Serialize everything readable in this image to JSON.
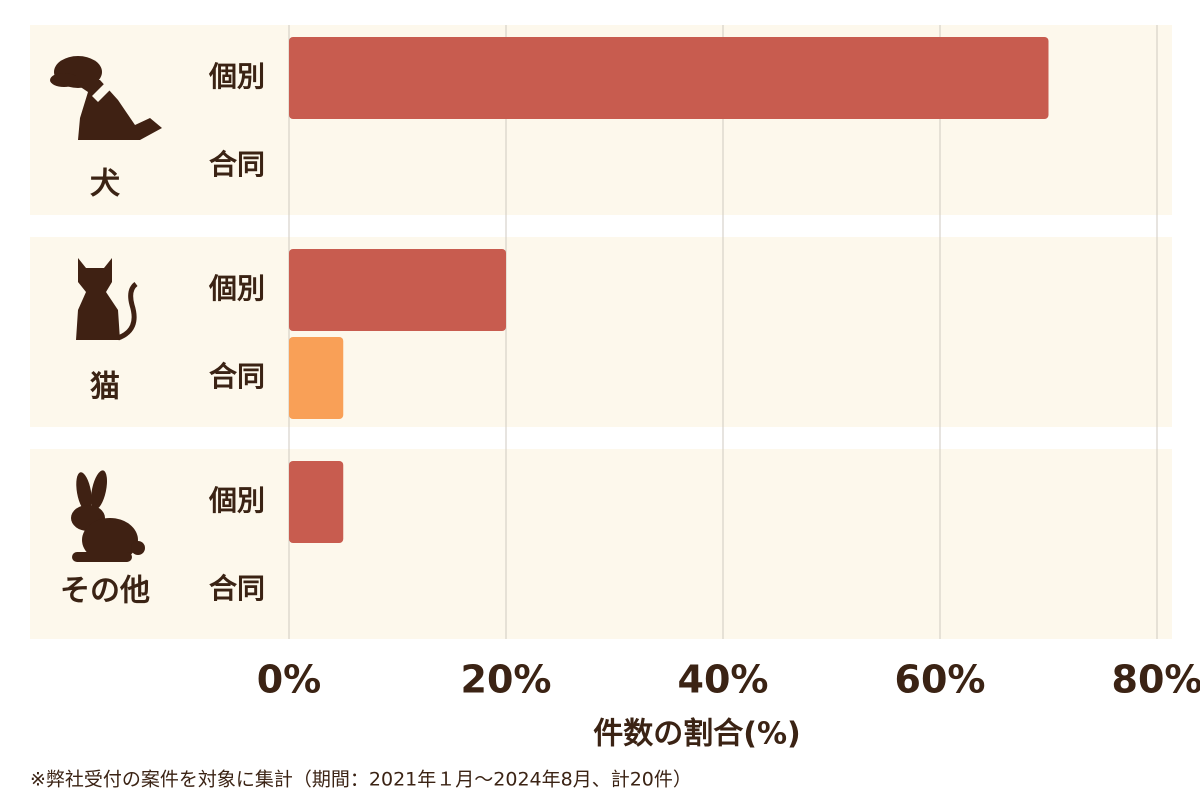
{
  "chart_data": {
    "type": "bar",
    "categories": [
      "犬",
      "猫",
      "その他"
    ],
    "series": [
      {
        "name": "個別",
        "color": "#c85c4f",
        "values": [
          70,
          20,
          5
        ]
      },
      {
        "name": "合同",
        "color": "#f9a057",
        "values": [
          0,
          5,
          0
        ]
      }
    ],
    "xlim": [
      0,
      80
    ],
    "xticks": [
      {
        "value": 0,
        "label": "0%"
      },
      {
        "value": 20,
        "label": "20%"
      },
      {
        "value": 40,
        "label": "40%"
      },
      {
        "value": 60,
        "label": "60%"
      },
      {
        "value": 80,
        "label": "80%"
      }
    ],
    "grid": true,
    "xlabel": "件数の割合(%)",
    "footnote": "※弊社受付の案件を対象に集計（期間：2021年１月～2024年8月、計20件）"
  }
}
